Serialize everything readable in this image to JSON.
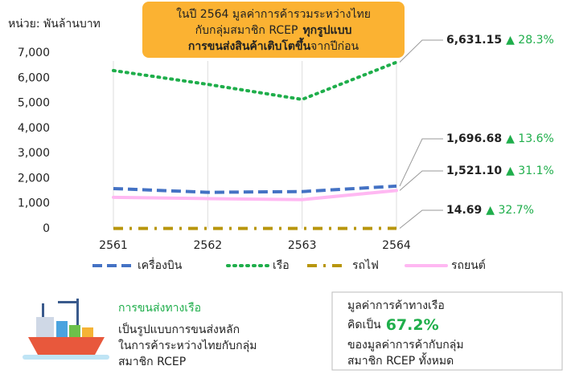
{
  "unit_label": "หน่วย: พันล้านบาท",
  "callout": {
    "line1": "ในปี 2564 มูลค่าการค้ารวมระหว่างไทย",
    "line2": "กับกลุ่มสมาชิก RCEP",
    "line2_bold": "ทุกรูปแบบ",
    "line3_bold": "การขนส่งสินค้าเติบโตขึ้น",
    "line3": "จากปีก่อน"
  },
  "chart_data": {
    "type": "line",
    "categories": [
      "2561",
      "2562",
      "2563",
      "2564"
    ],
    "ylim": [
      0,
      7000
    ],
    "yticks": [
      0,
      {
        "value": 1000,
        "label": "1,000"
      },
      {
        "value": 2000,
        "label": "2,000"
      },
      {
        "value": 3000,
        "label": "3,000"
      },
      {
        "value": 4000,
        "label": "4,000"
      },
      {
        "value": 5000,
        "label": "5,000"
      },
      {
        "value": 6000,
        "label": "6,000"
      },
      {
        "value": 7000,
        "label": "7,000"
      }
    ],
    "grid": "vertical",
    "series": [
      {
        "name": "เครื่องบิน",
        "color": "#4472c4",
        "style": "dashed",
        "values": [
          1600,
          1450,
          1480,
          1696.68
        ],
        "value_labels": [
          null,
          null,
          null,
          "1,696.68"
        ],
        "growth": "▲ 13.6%"
      },
      {
        "name": "เรือ",
        "color": "#1fae4b",
        "style": "dotted",
        "values": [
          6300,
          5750,
          5150,
          6631.15
        ],
        "value_labels": [
          null,
          null,
          null,
          "6,631.15"
        ],
        "growth": "▲ 28.3%"
      },
      {
        "name": "รถไฟ",
        "color": "#b8960c",
        "style": "dashdot",
        "values": [
          12,
          11,
          11,
          14.69
        ],
        "value_labels": [
          null,
          null,
          null,
          "14.69"
        ],
        "growth": "▲ 32.7%"
      },
      {
        "name": "รถยนต์",
        "color": "#ffb8f2",
        "style": "solid",
        "values": [
          1250,
          1200,
          1160,
          1521.1
        ],
        "value_labels": [
          null,
          null,
          null,
          "1,521.10"
        ],
        "growth": "▲ 31.1%"
      }
    ]
  },
  "info": {
    "ship_title": "การขนส่งทางเรือ",
    "ship_text": [
      "เป็นรูปแบบการขนส่งหลัก",
      "ในการค้าระหว่างไทยกับกลุ่ม",
      "สมาชิก RCEP"
    ],
    "share_line1": "มูลค่าการค้าทางเรือ",
    "share_prefix": "คิดเป็น",
    "share_value": "67.2%",
    "share_text": [
      "ของมูลค่าการค้ากับกลุ่ม",
      "สมาชิก RCEP ทั้งหมด"
    ]
  }
}
